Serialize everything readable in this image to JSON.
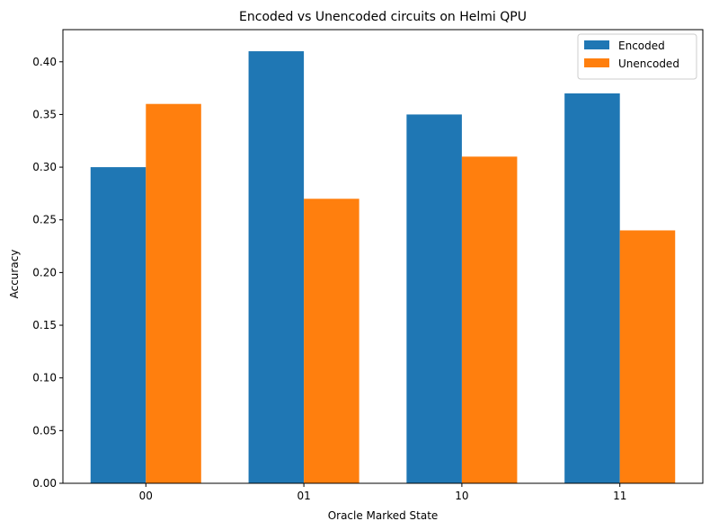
{
  "chart_data": {
    "type": "bar",
    "title": "Encoded vs Unencoded circuits on Helmi QPU",
    "xlabel": "Oracle Marked State",
    "ylabel": "Accuracy",
    "categories": [
      "00",
      "01",
      "10",
      "11"
    ],
    "series": [
      {
        "name": "Encoded",
        "values": [
          0.3,
          0.41,
          0.35,
          0.37
        ],
        "color": "#1f77b4"
      },
      {
        "name": "Unencoded",
        "values": [
          0.36,
          0.27,
          0.31,
          0.24
        ],
        "color": "#ff7f0e"
      }
    ],
    "ylim": [
      0,
      0.4305
    ],
    "yticks": [
      "0.00",
      "0.05",
      "0.10",
      "0.15",
      "0.20",
      "0.25",
      "0.30",
      "0.35",
      "0.40"
    ],
    "legend_position": "top-right",
    "grid": false
  }
}
